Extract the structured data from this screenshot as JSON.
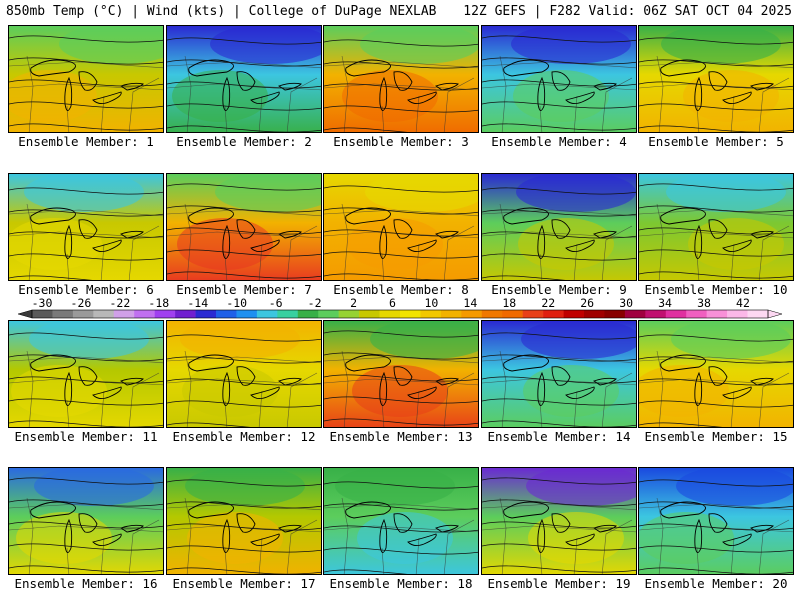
{
  "header": {
    "left": "850mb Temp (°C) | Wind (kts) | College of DuPage NEXLAB",
    "right": "12Z GEFS | F282 Valid: 06Z SAT OCT 04 2025"
  },
  "panels": [
    {
      "label": "Ensemble Member: 1",
      "icon": "member-1-map",
      "colors": {
        "base": "#c8c800",
        "top": "#5ccd5c",
        "accent": "#f2b200"
      }
    },
    {
      "label": "Ensemble Member: 2",
      "icon": "member-2-map",
      "colors": {
        "base": "#3cc6e0",
        "top": "#2a2ad2",
        "accent": "#38b048"
      }
    },
    {
      "label": "Ensemble Member: 3",
      "icon": "member-3-map",
      "colors": {
        "base": "#f2b200",
        "top": "#5ccd5c",
        "accent": "#f06a00"
      }
    },
    {
      "label": "Ensemble Member: 4",
      "icon": "member-4-map",
      "colors": {
        "base": "#3cc6e0",
        "top": "#2a2ad2",
        "accent": "#5ccd5c"
      }
    },
    {
      "label": "Ensemble Member: 5",
      "icon": "member-5-map",
      "colors": {
        "base": "#e6d800",
        "top": "#38b048",
        "accent": "#f2b200"
      }
    },
    {
      "label": "Ensemble Member: 6",
      "icon": "member-6-map",
      "colors": {
        "base": "#c8c800",
        "top": "#3cc6e0",
        "accent": "#e6d800"
      }
    },
    {
      "label": "Ensemble Member: 7",
      "icon": "member-7-map",
      "colors": {
        "base": "#f2b200",
        "top": "#5ccd5c",
        "accent": "#e83820"
      }
    },
    {
      "label": "Ensemble Member: 8",
      "icon": "member-8-map",
      "colors": {
        "base": "#f2b200",
        "top": "#e6d800",
        "accent": "#f59a00"
      }
    },
    {
      "label": "Ensemble Member: 9",
      "icon": "member-9-map",
      "colors": {
        "base": "#5ccd5c",
        "top": "#2a2ad2",
        "accent": "#c8c800"
      }
    },
    {
      "label": "Ensemble Member: 10",
      "icon": "member-10-map",
      "colors": {
        "base": "#7cc832",
        "top": "#3cc6e0",
        "accent": "#c8c800"
      }
    },
    {
      "label": "Ensemble Member: 11",
      "icon": "member-11-map",
      "colors": {
        "base": "#b4c800",
        "top": "#3cc6e0",
        "accent": "#e6d800"
      }
    },
    {
      "label": "Ensemble Member: 12",
      "icon": "member-12-map",
      "colors": {
        "base": "#e6d800",
        "top": "#f2b200",
        "accent": "#c8c800"
      }
    },
    {
      "label": "Ensemble Member: 13",
      "icon": "member-13-map",
      "colors": {
        "base": "#f2b200",
        "top": "#38b048",
        "accent": "#e84018"
      }
    },
    {
      "label": "Ensemble Member: 14",
      "icon": "member-14-map",
      "colors": {
        "base": "#3cc6e0",
        "top": "#2a2ad2",
        "accent": "#5ccd5c"
      }
    },
    {
      "label": "Ensemble Member: 15",
      "icon": "member-15-map",
      "colors": {
        "base": "#e6d800",
        "top": "#5ccd5c",
        "accent": "#f2b200"
      }
    },
    {
      "label": "Ensemble Member: 16",
      "icon": "member-16-map",
      "colors": {
        "base": "#5ccd5c",
        "top": "#2a6ae0",
        "accent": "#e6d800"
      }
    },
    {
      "label": "Ensemble Member: 17",
      "icon": "member-17-map",
      "colors": {
        "base": "#b4c800",
        "top": "#38b048",
        "accent": "#f2b200"
      }
    },
    {
      "label": "Ensemble Member: 18",
      "icon": "member-18-map",
      "colors": {
        "base": "#5ccd5c",
        "top": "#38b048",
        "accent": "#3cc6e0"
      }
    },
    {
      "label": "Ensemble Member: 19",
      "icon": "member-19-map",
      "colors": {
        "base": "#5ccd5c",
        "top": "#6a2ad2",
        "accent": "#e6d800"
      }
    },
    {
      "label": "Ensemble Member: 20",
      "icon": "member-20-map",
      "colors": {
        "base": "#3cc6e0",
        "top": "#1a4ae0",
        "accent": "#5ccd5c"
      }
    }
  ],
  "colorbar": {
    "labels": [
      "-30",
      "-26",
      "-22",
      "-18",
      "-14",
      "-10",
      "-6",
      "-2",
      "2",
      "6",
      "10",
      "14",
      "18",
      "22",
      "26",
      "30",
      "34",
      "38",
      "42"
    ],
    "colors": [
      "#5a5a5a",
      "#7a7a7a",
      "#9a9a9a",
      "#b8b8b8",
      "#d0a0e8",
      "#c070f0",
      "#a040f0",
      "#7020d0",
      "#2a2ad2",
      "#1e60e8",
      "#1e90f0",
      "#3cc6e0",
      "#38d0a0",
      "#38b048",
      "#5ccd5c",
      "#96d232",
      "#c8c800",
      "#e6d800",
      "#f2e400",
      "#f2c800",
      "#f2b200",
      "#f59a00",
      "#f07800",
      "#f06a00",
      "#e84018",
      "#e02010",
      "#c00000",
      "#a00000",
      "#880000",
      "#a00040",
      "#c01070",
      "#e030a0",
      "#f060c0",
      "#f890d8",
      "#fbb8e8",
      "#fdd8f2"
    ]
  }
}
